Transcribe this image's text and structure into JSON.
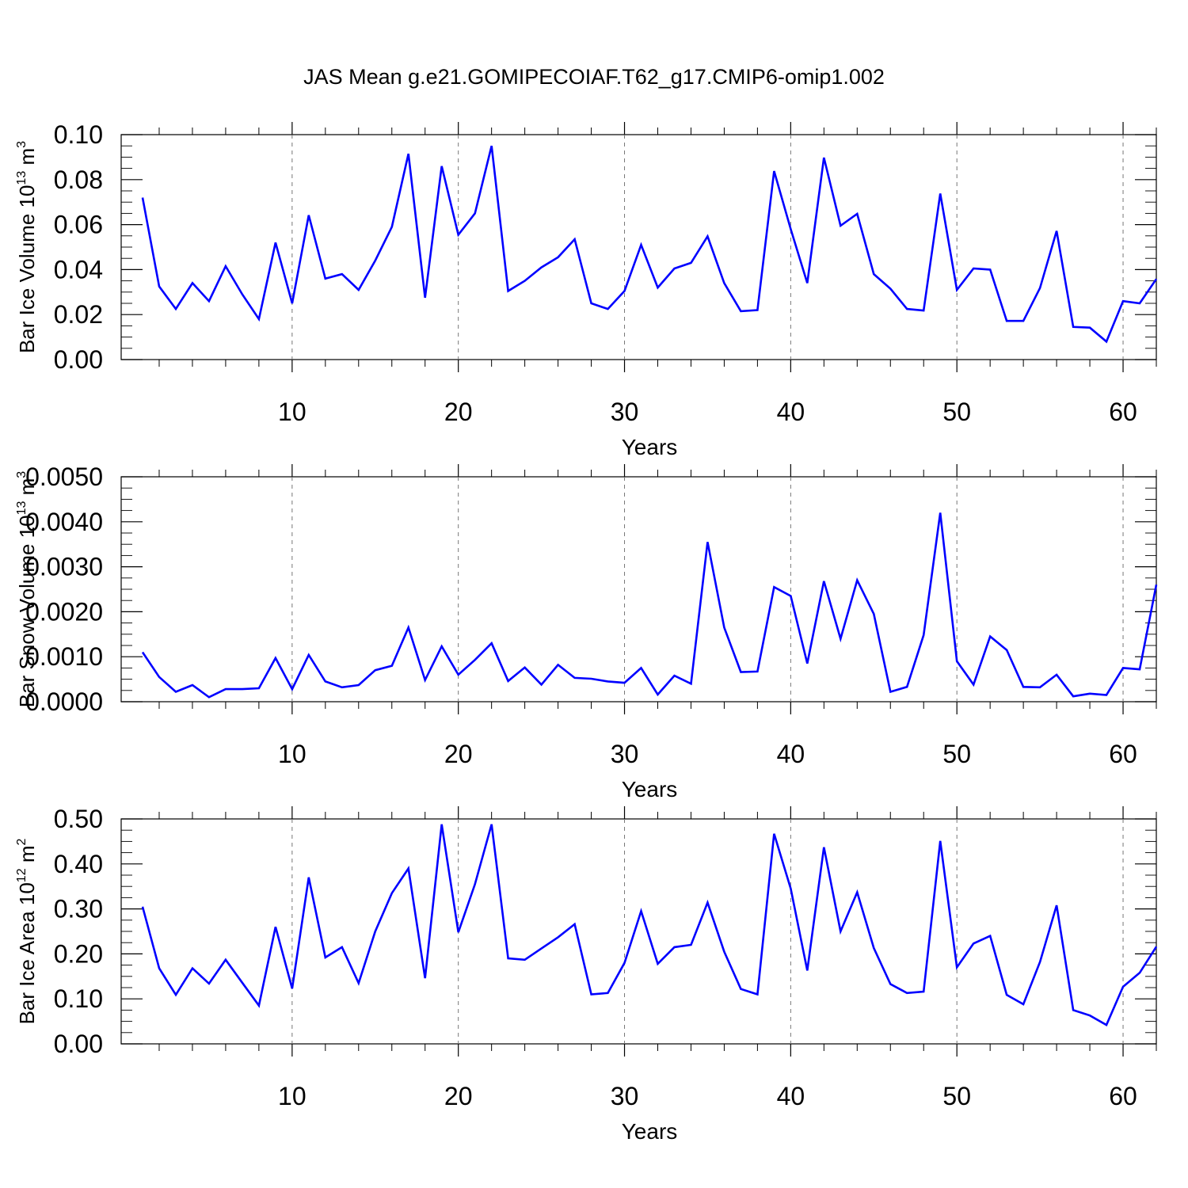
{
  "title": "JAS Mean g.e21.GOMIPECOIAF.T62_g17.CMIP6-omip1.002",
  "chart_data": [
    {
      "type": "line",
      "ylabel": "Bar Ice Volume 10",
      "ylabel_exp": "13",
      "ylabel_unit": " m",
      "ylabel_unit_exp": "3",
      "xlabel": "Years",
      "xlim": [
        1,
        62
      ],
      "ylim": [
        0,
        0.1
      ],
      "yticks": [
        "0.00",
        "0.02",
        "0.04",
        "0.06",
        "0.08",
        "0.10"
      ],
      "xticks": [
        "10",
        "20",
        "30",
        "40",
        "50",
        "60"
      ],
      "color": "#0000ff",
      "x_start": 1,
      "values": [
        0.072,
        0.0325,
        0.0225,
        0.034,
        0.026,
        0.0415,
        0.029,
        0.018,
        0.052,
        0.025,
        0.0642,
        0.036,
        0.038,
        0.031,
        0.044,
        0.059,
        0.0915,
        0.0275,
        0.086,
        0.0555,
        0.065,
        0.095,
        0.0305,
        0.035,
        0.041,
        0.0455,
        0.0535,
        0.025,
        0.0225,
        0.0305,
        0.051,
        0.032,
        0.0405,
        0.043,
        0.0548,
        0.034,
        0.0215,
        0.022,
        0.0838,
        0.058,
        0.034,
        0.0898,
        0.0595,
        0.0648,
        0.038,
        0.0315,
        0.0225,
        0.0218,
        0.0738,
        0.031,
        0.0405,
        0.04,
        0.0172,
        0.0172,
        0.0318,
        0.0572,
        0.0145,
        0.0142,
        0.008,
        0.026,
        0.025,
        0.0358
      ]
    },
    {
      "type": "line",
      "ylabel": "Bar Snow Volume 10",
      "ylabel_exp": "13",
      "ylabel_unit": " m",
      "ylabel_unit_exp": "3",
      "xlabel": "Years",
      "xlim": [
        1,
        62
      ],
      "ylim": [
        0,
        0.005
      ],
      "yticks": [
        "0.0000",
        "0.0010",
        "0.0020",
        "0.0030",
        "0.0040",
        "0.0050"
      ],
      "xticks": [
        "10",
        "20",
        "30",
        "40",
        "50",
        "60"
      ],
      "color": "#0000ff",
      "x_start": 1,
      "values": [
        0.0011,
        0.00055,
        0.00022,
        0.00037,
        0.0001,
        0.00028,
        0.00028,
        0.0003,
        0.00097,
        0.00028,
        0.00104,
        0.00045,
        0.00032,
        0.00037,
        0.0007,
        0.0008,
        0.00165,
        0.00048,
        0.00123,
        0.0006,
        0.00093,
        0.0013,
        0.00046,
        0.00076,
        0.00038,
        0.00082,
        0.00053,
        0.00051,
        0.00045,
        0.00042,
        0.00075,
        0.00016,
        0.00058,
        0.0004,
        0.00355,
        0.00165,
        0.00066,
        0.00067,
        0.00255,
        0.00235,
        0.00085,
        0.00268,
        0.0014,
        0.0027,
        0.00195,
        0.00022,
        0.00033,
        0.00148,
        0.0042,
        0.0009,
        0.00038,
        0.00145,
        0.00115,
        0.00033,
        0.00032,
        0.0006,
        0.00012,
        0.00018,
        0.00015,
        0.00075,
        0.00072,
        0.0026
      ]
    },
    {
      "type": "line",
      "ylabel": "Bar Ice Area 10",
      "ylabel_exp": "12",
      "ylabel_unit": " m",
      "ylabel_unit_exp": "2",
      "xlabel": "Years",
      "xlim": [
        1,
        62
      ],
      "ylim": [
        0,
        0.5
      ],
      "yticks": [
        "0.00",
        "0.10",
        "0.20",
        "0.30",
        "0.40",
        "0.50"
      ],
      "xticks": [
        "10",
        "20",
        "30",
        "40",
        "50",
        "60"
      ],
      "color": "#0000ff",
      "x_start": 1,
      "values": [
        0.305,
        0.168,
        0.109,
        0.168,
        0.134,
        0.187,
        0.136,
        0.085,
        0.26,
        0.123,
        0.37,
        0.192,
        0.215,
        0.135,
        0.25,
        0.335,
        0.39,
        0.146,
        0.488,
        0.248,
        0.355,
        0.488,
        0.19,
        0.187,
        0.212,
        0.237,
        0.266,
        0.11,
        0.113,
        0.18,
        0.295,
        0.178,
        0.215,
        0.22,
        0.314,
        0.205,
        0.122,
        0.11,
        0.467,
        0.345,
        0.163,
        0.437,
        0.25,
        0.337,
        0.213,
        0.133,
        0.113,
        0.116,
        0.451,
        0.17,
        0.223,
        0.24,
        0.109,
        0.088,
        0.182,
        0.308,
        0.075,
        0.063,
        0.042,
        0.127,
        0.158,
        0.216
      ]
    }
  ]
}
